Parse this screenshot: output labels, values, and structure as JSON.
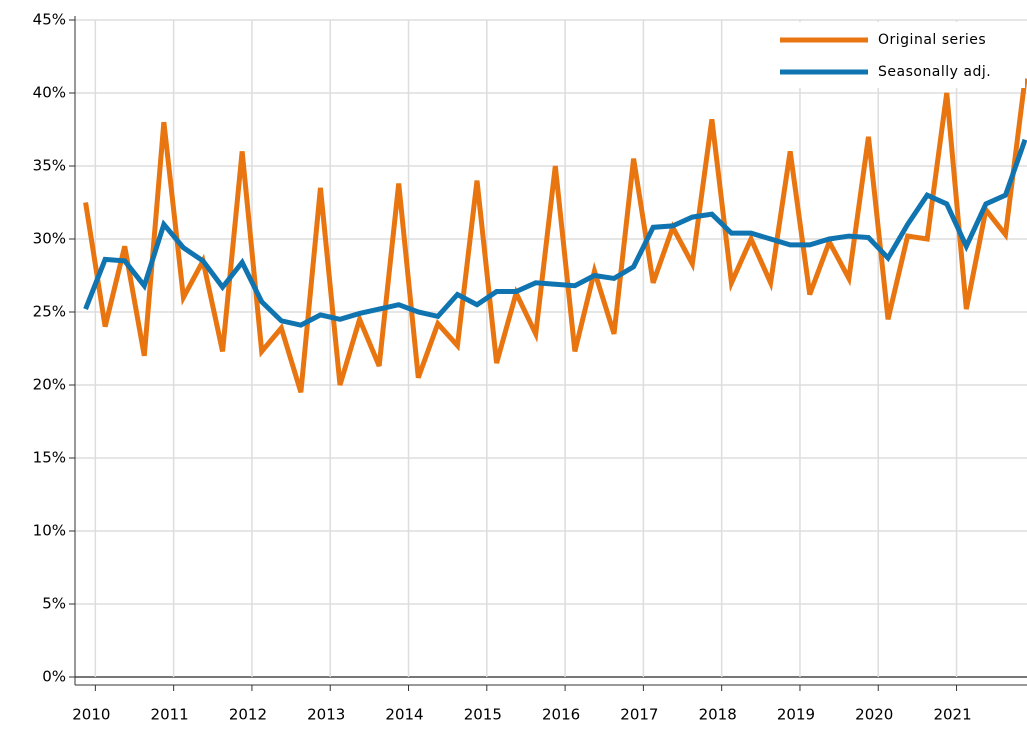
{
  "chart_data": {
    "type": "line",
    "x": [
      2009.875,
      2010.125,
      2010.375,
      2010.625,
      2010.875,
      2011.125,
      2011.375,
      2011.625,
      2011.875,
      2012.125,
      2012.375,
      2012.625,
      2012.875,
      2013.125,
      2013.375,
      2013.625,
      2013.875,
      2014.125,
      2014.375,
      2014.625,
      2014.875,
      2015.125,
      2015.375,
      2015.625,
      2015.875,
      2016.125,
      2016.375,
      2016.625,
      2016.875,
      2017.125,
      2017.375,
      2017.625,
      2017.875,
      2018.125,
      2018.375,
      2018.625,
      2018.875,
      2019.125,
      2019.375,
      2019.625,
      2019.875,
      2020.125,
      2020.375,
      2020.625,
      2020.875,
      2021.125,
      2021.375,
      2021.625,
      2021.875
    ],
    "series": [
      {
        "name": "Original series",
        "color": "#e8750f",
        "values": [
          32.5,
          24,
          29.5,
          22,
          38,
          26,
          28.5,
          22.3,
          36,
          22.3,
          23.9,
          19.5,
          33.5,
          20,
          24.5,
          21.3,
          33.8,
          20.5,
          24.2,
          22.7,
          34,
          21.5,
          26.3,
          23.5,
          35,
          22.3,
          27.8,
          23.5,
          35.5,
          27,
          30.8,
          28.3,
          38.2,
          27,
          30,
          27,
          36,
          26.2,
          29.8,
          27.3,
          37,
          24.5,
          30.2,
          30,
          40,
          25.2,
          32,
          30.3,
          41
        ]
      },
      {
        "name": "Seasonally adj.",
        "color": "#0f74b0",
        "values": [
          25.2,
          28.6,
          28.5,
          26.8,
          31,
          29.4,
          28.5,
          26.7,
          28.4,
          25.7,
          24.4,
          24.1,
          24.8,
          24.5,
          24.9,
          25.2,
          25.5,
          25,
          24.7,
          26.2,
          25.5,
          26.4,
          26.4,
          27,
          26.9,
          26.8,
          27.5,
          27.3,
          28.1,
          30.8,
          30.9,
          31.5,
          31.7,
          30.4,
          30.4,
          30,
          29.6,
          29.6,
          30,
          30.2,
          30.1,
          28.7,
          31,
          33,
          32.4,
          29.5,
          32.4,
          33,
          36.8
        ]
      }
    ],
    "xlim": [
      2009.74,
      2021.9
    ],
    "xticks": [
      2010,
      2011,
      2012,
      2013,
      2014,
      2015,
      2016,
      2017,
      2018,
      2019,
      2020,
      2021
    ],
    "ylim": [
      0,
      45
    ],
    "yticks": [
      {
        "value": 0,
        "label": "0%"
      },
      {
        "value": 5,
        "label": "5%"
      },
      {
        "value": 10,
        "label": "10%"
      },
      {
        "value": 15,
        "label": "15%"
      },
      {
        "value": 20,
        "label": "20%"
      },
      {
        "value": 25,
        "label": "25%"
      },
      {
        "value": 30,
        "label": "30%"
      },
      {
        "value": 35,
        "label": "35%"
      },
      {
        "value": 40,
        "label": "40%"
      },
      {
        "value": 45,
        "label": "45%"
      }
    ],
    "grid": true,
    "legend": "top-right"
  }
}
